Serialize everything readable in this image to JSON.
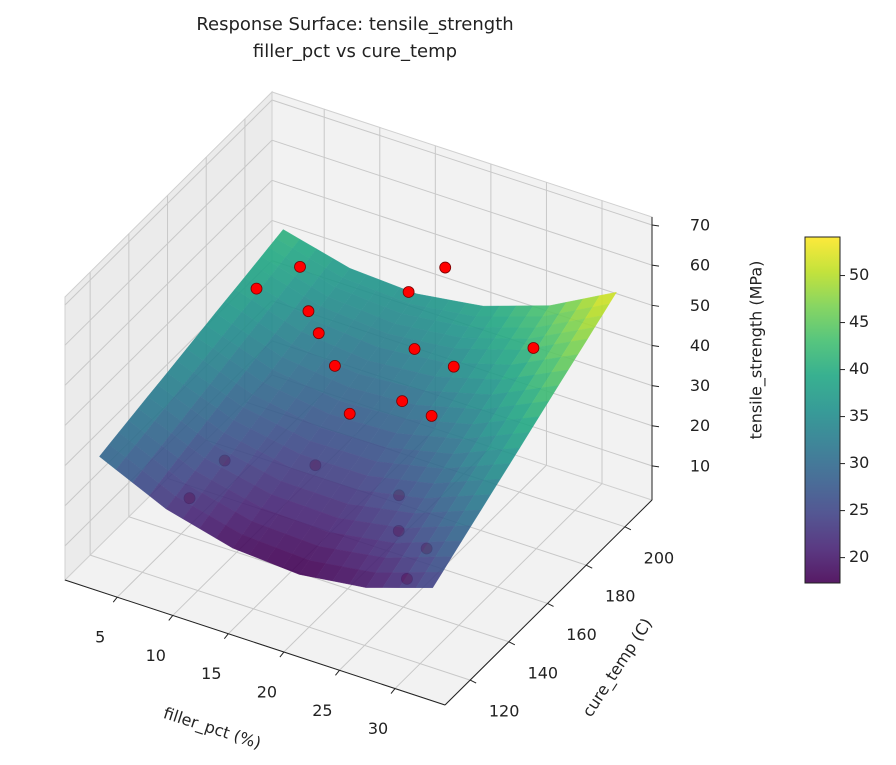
{
  "chart_data": {
    "type": "surface3d",
    "title": "Response Surface: tensile_strength",
    "subtitle": "filler_pct vs cure_temp",
    "x_label": "filler_pct (%)",
    "y_label": "cure_temp (C)",
    "z_label": "tensile_strength (MPa)",
    "xlim": [
      0.3,
      34.5
    ],
    "ylim": [
      107,
      214
    ],
    "zlim": [
      1.5,
      72
    ],
    "xticks": [
      5,
      10,
      15,
      20,
      25,
      30
    ],
    "yticks": [
      120,
      140,
      160,
      180,
      200
    ],
    "zticks": [
      10,
      20,
      30,
      40,
      50,
      60,
      70
    ],
    "grid": true,
    "colormap": "viridis",
    "clim": [
      17.3,
      54.1
    ],
    "colorbar_ticks": [
      20,
      25,
      30,
      35,
      40,
      45,
      50
    ],
    "surface": {
      "x": [
        2,
        8,
        14,
        20,
        26,
        32
      ],
      "y": [
        115,
        135,
        155,
        175,
        195,
        210
      ],
      "z": [
        [
          30.0,
          22.4,
          18.1,
          17.0,
          19.2,
          24.6
        ],
        [
          32.4,
          25.5,
          21.9,
          21.5,
          24.4,
          30.6
        ],
        [
          34.7,
          28.6,
          25.7,
          26.0,
          29.7,
          36.5
        ],
        [
          37.1,
          31.6,
          29.5,
          30.6,
          34.9,
          42.5
        ],
        [
          39.4,
          34.7,
          33.3,
          35.1,
          40.2,
          48.4
        ],
        [
          41.2,
          37.0,
          36.1,
          38.5,
          44.1,
          52.9
        ]
      ]
    },
    "scatter": {
      "color": "#ff0000",
      "x": [
        8.2,
        9.1,
        15.0,
        22.7,
        23.2,
        27.1,
        26.2,
        16.0,
        19.5,
        22.5,
        13.1,
        10.6,
        9.5,
        5.0,
        7.0,
        18.7,
        23.1,
        29.4,
        16.6,
        18.5
      ],
      "y": [
        126,
        139,
        152,
        151,
        148,
        140,
        135,
        164,
        171,
        169,
        173,
        179,
        180,
        179,
        190,
        182,
        177,
        182,
        191,
        199
      ],
      "z": [
        20,
        24,
        22,
        22,
        15,
        18,
        12,
        30,
        33,
        33,
        35,
        38,
        42,
        44,
        46,
        40,
        42,
        50,
        48,
        52
      ]
    }
  }
}
